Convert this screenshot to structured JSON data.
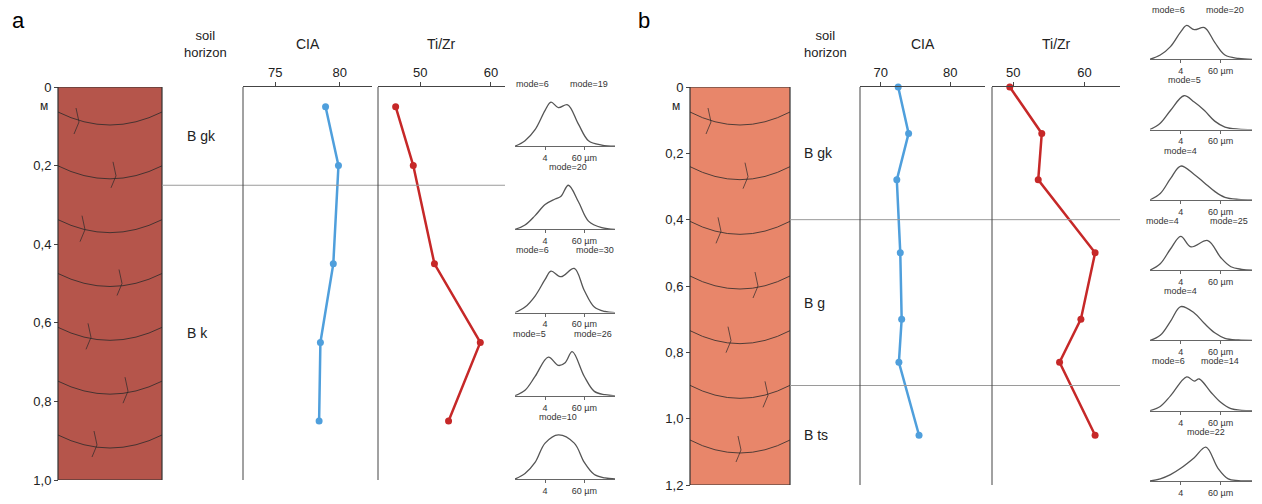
{
  "chart_data": [
    {
      "type": "line",
      "label": "a",
      "depth": {
        "ylabel": "м",
        "ylim": [
          0,
          1.0
        ],
        "yticks": [
          0,
          {
            "value": 0.2,
            "label": "0,2"
          },
          {
            "value": 0.4,
            "label": "0,4"
          },
          {
            "value": 0.6,
            "label": "0,6"
          },
          {
            "value": 0.8,
            "label": "0,8"
          },
          {
            "value": 1.0,
            "label": "1,0"
          }
        ]
      },
      "horizon_title": "soil horizon",
      "horizons": [
        {
          "name": "B gk",
          "top": 0,
          "bottom": 0.25
        },
        {
          "name": "B k",
          "top": 0.25,
          "bottom": 1.0
        }
      ],
      "series": [
        {
          "name": "CIA",
          "color": "#4f9fdc",
          "marker": "circle",
          "xlim": [
            72.5,
            82.5
          ],
          "xticks": [
            75,
            80
          ],
          "depths": [
            0.05,
            0.2,
            0.45,
            0.65,
            0.85
          ],
          "values": [
            78.9,
            79.9,
            79.5,
            78.5,
            78.4
          ]
        },
        {
          "name": "Ti/Zr",
          "color": "#c62828",
          "marker": "circle",
          "xlim": [
            44,
            62
          ],
          "xticks": [
            50,
            60
          ],
          "depths": [
            0.05,
            0.2,
            0.45,
            0.65,
            0.85
          ],
          "values": [
            46.5,
            49.0,
            52.0,
            58.5,
            54.0
          ]
        }
      ],
      "grain_size": {
        "type": "line",
        "log": "x",
        "xlim": [
          0.5,
          500
        ],
        "xticks": [
          4,
          {
            "value": 60,
            "label": "60 µm"
          }
        ],
        "ylim": [
          0,
          10
        ],
        "tick_labels": "x",
        "color": "#555555",
        "curves": [
          {
            "x": [
              0.5,
              1,
              2,
              4,
              6,
              10,
              19,
              40,
              80,
              200,
              500
            ],
            "values": [
              0,
              1,
              3,
              6.5,
              8,
              7,
              7.5,
              4,
              1,
              0.2,
              0
            ],
            "modes": [
              6,
              19
            ],
            "mode_labels": [
              "mode=6",
              "mode=19"
            ]
          },
          {
            "x": [
              0.5,
              1,
              2,
              4,
              8,
              12,
              20,
              40,
              80,
              200,
              500
            ],
            "values": [
              0,
              0.8,
              2.5,
              4.5,
              5.5,
              6,
              8,
              5,
              1.5,
              0.3,
              0
            ],
            "modes": [
              20
            ],
            "mode_labels": [
              "mode=20"
            ]
          },
          {
            "x": [
              0.5,
              1,
              2,
              4,
              6,
              12,
              30,
              60,
              120,
              250,
              500
            ],
            "values": [
              0,
              1,
              3,
              6,
              7.5,
              6.5,
              8,
              4,
              1,
              0.2,
              0
            ],
            "modes": [
              6,
              30
            ],
            "mode_labels": [
              "mode=6",
              "mode=30"
            ]
          },
          {
            "x": [
              0.5,
              1,
              2,
              5,
              10,
              16,
              26,
              60,
              120,
              250,
              500
            ],
            "values": [
              0,
              1,
              3.5,
              7,
              5.5,
              6,
              8,
              3.5,
              0.8,
              0.2,
              0
            ],
            "modes": [
              5,
              26
            ],
            "mode_labels": [
              "mode=5",
              "mode=26"
            ]
          },
          {
            "x": [
              0.5,
              1,
              2,
              4,
              10,
              30,
              60,
              120,
              250,
              500
            ],
            "values": [
              0,
              1,
              3,
              6.5,
              8,
              6.5,
              3,
              0.8,
              0.2,
              0
            ],
            "modes": [
              10
            ],
            "mode_labels": [
              "mode=10"
            ]
          }
        ]
      }
    },
    {
      "type": "line",
      "label": "b",
      "depth": {
        "ylabel": "м",
        "ylim": [
          0,
          1.2
        ],
        "yticks": [
          0,
          {
            "value": 0.2,
            "label": "0,2"
          },
          {
            "value": 0.4,
            "label": "0,4"
          },
          {
            "value": 0.6,
            "label": "0,6"
          },
          {
            "value": 0.8,
            "label": "0,8"
          },
          {
            "value": 1.0,
            "label": "1,0"
          },
          {
            "value": 1.2,
            "label": "1,2"
          }
        ]
      },
      "horizon_title": "soil horizon",
      "horizons": [
        {
          "name": "B gk",
          "top": 0,
          "bottom": 0.4
        },
        {
          "name": "B g",
          "top": 0.4,
          "bottom": 0.9
        },
        {
          "name": "B ts",
          "top": 0.9,
          "bottom": 1.2
        }
      ],
      "series": [
        {
          "name": "CIA",
          "color": "#4f9fdc",
          "marker": "circle",
          "xlim": [
            67,
            85
          ],
          "xticks": [
            70,
            80
          ],
          "depths": [
            0.0,
            0.14,
            0.28,
            0.5,
            0.7,
            0.83,
            1.05
          ],
          "values": [
            72.5,
            74.0,
            72.3,
            72.8,
            73.0,
            72.6,
            75.5
          ]
        },
        {
          "name": "Ti/Zr",
          "color": "#c62828",
          "marker": "circle",
          "xlim": [
            47,
            65
          ],
          "xticks": [
            50,
            60
          ],
          "depths": [
            0.0,
            0.14,
            0.28,
            0.5,
            0.7,
            0.83,
            1.05
          ],
          "values": [
            49.5,
            54.0,
            53.5,
            61.5,
            59.5,
            56.5,
            61.5
          ]
        }
      ],
      "grain_size": {
        "type": "line",
        "log": "x",
        "xlim": [
          0.5,
          500
        ],
        "xticks": [
          4,
          {
            "value": 60,
            "label": "60 µm"
          }
        ],
        "ylim": [
          0,
          10
        ],
        "tick_labels": "x",
        "color": "#555555",
        "curves": [
          {
            "x": [
              0.5,
              1,
              2,
              4,
              6,
              10,
              20,
              40,
              80,
              200,
              500
            ],
            "values": [
              0,
              1,
              3,
              6.5,
              8,
              7,
              7.5,
              4,
              1,
              0.2,
              0
            ],
            "modes": [
              6,
              20
            ],
            "mode_labels": [
              "mode=6",
              "mode=20"
            ]
          },
          {
            "x": [
              0.5,
              1,
              2,
              5,
              10,
              20,
              40,
              80,
              200,
              500
            ],
            "values": [
              0,
              1.5,
              4.5,
              8,
              6.5,
              4.5,
              2,
              0.6,
              0.1,
              0
            ],
            "modes": [
              5
            ],
            "mode_labels": [
              "mode=5"
            ]
          },
          {
            "x": [
              0.5,
              1,
              2,
              4,
              10,
              20,
              40,
              80,
              200,
              500
            ],
            "values": [
              0,
              1.5,
              5,
              8,
              6,
              4,
              2,
              0.6,
              0.1,
              0
            ],
            "modes": [
              4
            ],
            "mode_labels": [
              "mode=4"
            ]
          },
          {
            "x": [
              0.5,
              1,
              2,
              4,
              8,
              25,
              60,
              120,
              250,
              500
            ],
            "values": [
              0,
              1.5,
              5,
              8,
              5.5,
              7,
              3,
              0.8,
              0.2,
              0
            ],
            "modes": [
              4,
              25
            ],
            "mode_labels": [
              "mode=4",
              "mode=25"
            ]
          },
          {
            "x": [
              0.5,
              1,
              2,
              4,
              10,
              20,
              40,
              80,
              200,
              500
            ],
            "values": [
              0,
              1.2,
              4.5,
              8,
              6.5,
              4,
              1.8,
              0.5,
              0.1,
              0
            ],
            "modes": [
              4
            ],
            "mode_labels": [
              "mode=4"
            ]
          },
          {
            "x": [
              0.5,
              1,
              2,
              6,
              10,
              14,
              30,
              60,
              120,
              250,
              500
            ],
            "values": [
              0,
              1,
              3.5,
              8,
              7,
              7.5,
              4.5,
              2,
              0.5,
              0.1,
              0
            ],
            "modes": [
              6,
              14
            ],
            "mode_labels": [
              "mode=6",
              "mode=14"
            ]
          },
          {
            "x": [
              0.5,
              1,
              2,
              4,
              10,
              22,
              50,
              100,
              200,
              500
            ],
            "values": [
              0,
              0.5,
              1.5,
              3,
              5.5,
              8,
              3,
              0.5,
              0.1,
              0
            ],
            "modes": [
              22
            ],
            "mode_labels": [
              "mode=22"
            ]
          }
        ]
      }
    }
  ]
}
